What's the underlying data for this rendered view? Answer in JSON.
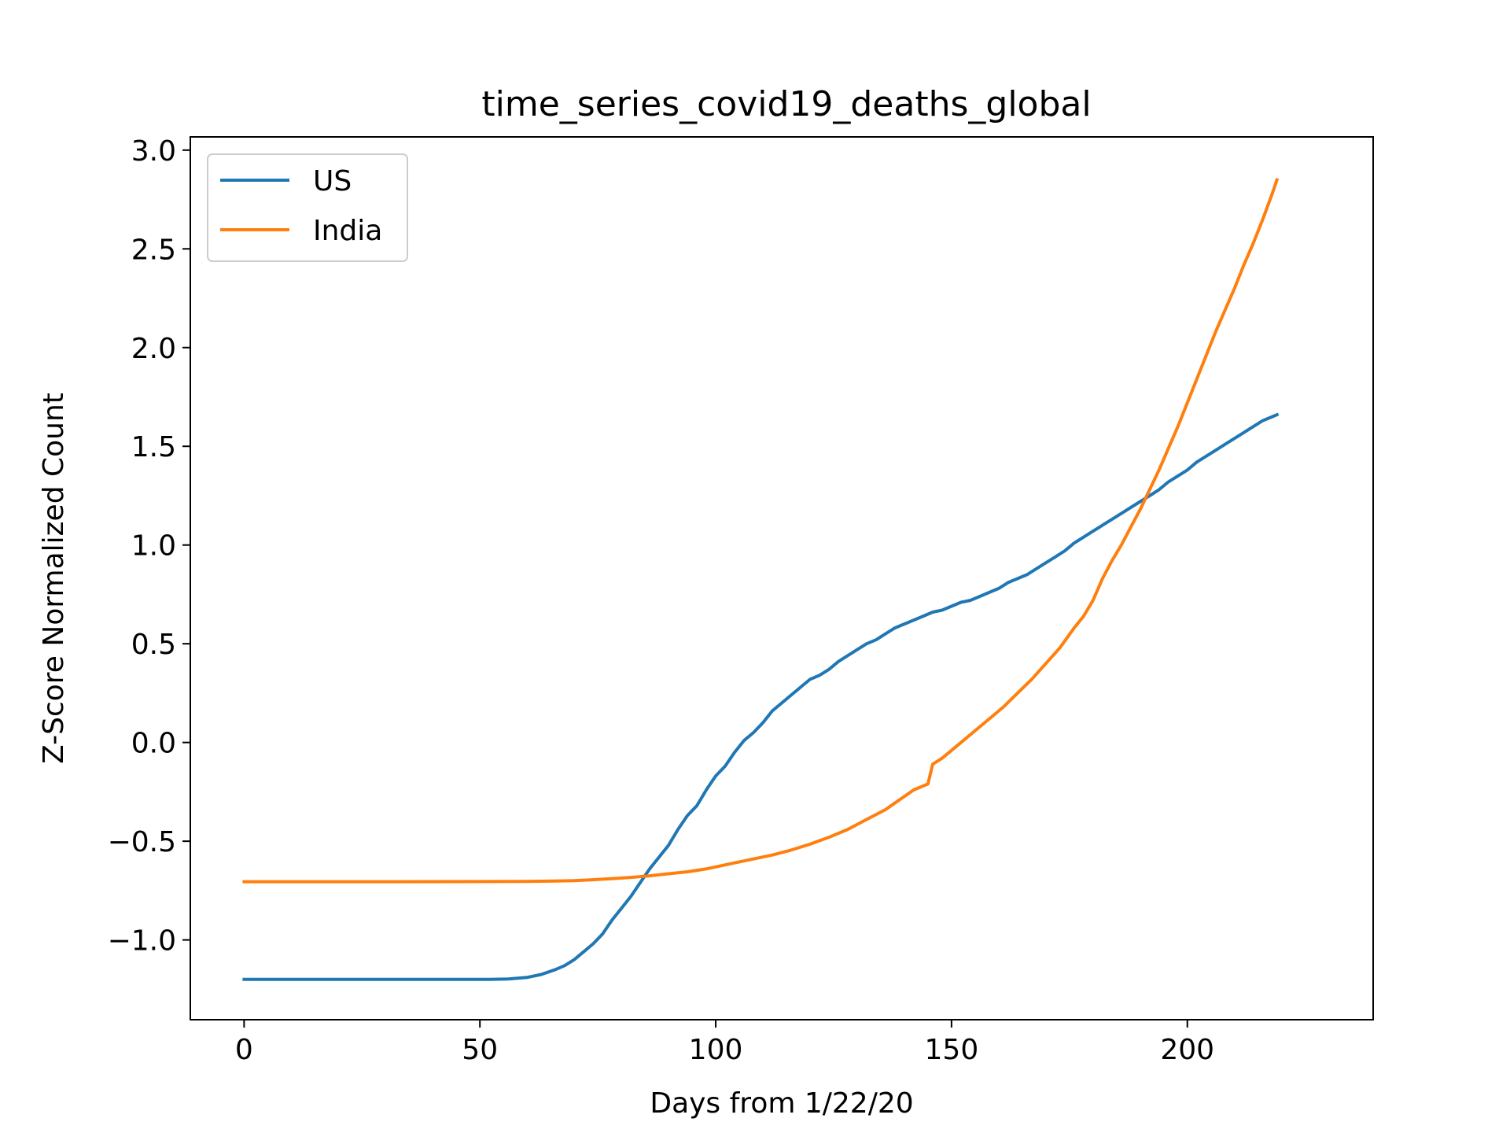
{
  "chart_data": {
    "type": "line",
    "title": "time_series_covid19_deaths_global",
    "xlabel": "Days from 1/22/20",
    "ylabel": "Z-Score Normalized Count",
    "xlim": [
      -11.4,
      239.4
    ],
    "ylim": [
      -1.404,
      3.067
    ],
    "xticks": [
      0,
      50,
      100,
      150,
      200
    ],
    "xtick_labels": [
      "0",
      "50",
      "100",
      "150",
      "200"
    ],
    "yticks": [
      -1.0,
      -0.5,
      0.0,
      0.5,
      1.0,
      1.5,
      2.0,
      2.5,
      3.0
    ],
    "ytick_labels": [
      "−1.0",
      "−0.5",
      "0.0",
      "0.5",
      "1.0",
      "1.5",
      "2.0",
      "2.5",
      "3.0"
    ],
    "grid": false,
    "legend_position": "top-left",
    "series": [
      {
        "name": "US",
        "color": "#1f77b4",
        "points": [
          [
            0,
            -1.2
          ],
          [
            20,
            -1.2
          ],
          [
            40,
            -1.2
          ],
          [
            52,
            -1.2
          ],
          [
            56,
            -1.198
          ],
          [
            60,
            -1.19
          ],
          [
            63,
            -1.175
          ],
          [
            66,
            -1.15
          ],
          [
            68,
            -1.13
          ],
          [
            70,
            -1.1
          ],
          [
            72,
            -1.06
          ],
          [
            74,
            -1.02
          ],
          [
            76,
            -0.97
          ],
          [
            78,
            -0.9
          ],
          [
            80,
            -0.84
          ],
          [
            82,
            -0.78
          ],
          [
            84,
            -0.71
          ],
          [
            86,
            -0.64
          ],
          [
            88,
            -0.58
          ],
          [
            90,
            -0.52
          ],
          [
            92,
            -0.44
          ],
          [
            94,
            -0.37
          ],
          [
            96,
            -0.32
          ],
          [
            98,
            -0.24
          ],
          [
            100,
            -0.17
          ],
          [
            102,
            -0.12
          ],
          [
            104,
            -0.05
          ],
          [
            106,
            0.01
          ],
          [
            108,
            0.05
          ],
          [
            110,
            0.1
          ],
          [
            112,
            0.16
          ],
          [
            114,
            0.2
          ],
          [
            116,
            0.24
          ],
          [
            118,
            0.28
          ],
          [
            120,
            0.32
          ],
          [
            122,
            0.34
          ],
          [
            124,
            0.37
          ],
          [
            126,
            0.41
          ],
          [
            128,
            0.44
          ],
          [
            130,
            0.47
          ],
          [
            132,
            0.5
          ],
          [
            134,
            0.52
          ],
          [
            136,
            0.55
          ],
          [
            138,
            0.58
          ],
          [
            140,
            0.6
          ],
          [
            142,
            0.62
          ],
          [
            144,
            0.64
          ],
          [
            146,
            0.66
          ],
          [
            148,
            0.67
          ],
          [
            150,
            0.69
          ],
          [
            152,
            0.71
          ],
          [
            154,
            0.72
          ],
          [
            156,
            0.74
          ],
          [
            158,
            0.76
          ],
          [
            160,
            0.78
          ],
          [
            162,
            0.81
          ],
          [
            164,
            0.83
          ],
          [
            166,
            0.85
          ],
          [
            168,
            0.88
          ],
          [
            170,
            0.91
          ],
          [
            172,
            0.94
          ],
          [
            174,
            0.97
          ],
          [
            176,
            1.01
          ],
          [
            178,
            1.04
          ],
          [
            180,
            1.07
          ],
          [
            182,
            1.1
          ],
          [
            184,
            1.13
          ],
          [
            186,
            1.16
          ],
          [
            188,
            1.19
          ],
          [
            190,
            1.22
          ],
          [
            192,
            1.25
          ],
          [
            194,
            1.28
          ],
          [
            196,
            1.32
          ],
          [
            198,
            1.35
          ],
          [
            200,
            1.38
          ],
          [
            202,
            1.42
          ],
          [
            204,
            1.45
          ],
          [
            206,
            1.48
          ],
          [
            208,
            1.51
          ],
          [
            210,
            1.54
          ],
          [
            212,
            1.57
          ],
          [
            214,
            1.6
          ],
          [
            216,
            1.63
          ],
          [
            218,
            1.65
          ],
          [
            219,
            1.66
          ]
        ]
      },
      {
        "name": "India",
        "color": "#ff7f0e",
        "points": [
          [
            0,
            -0.705
          ],
          [
            30,
            -0.705
          ],
          [
            60,
            -0.704
          ],
          [
            66,
            -0.702
          ],
          [
            70,
            -0.7
          ],
          [
            74,
            -0.695
          ],
          [
            78,
            -0.69
          ],
          [
            82,
            -0.683
          ],
          [
            86,
            -0.675
          ],
          [
            90,
            -0.665
          ],
          [
            94,
            -0.655
          ],
          [
            98,
            -0.64
          ],
          [
            100,
            -0.63
          ],
          [
            104,
            -0.61
          ],
          [
            108,
            -0.59
          ],
          [
            112,
            -0.57
          ],
          [
            116,
            -0.545
          ],
          [
            120,
            -0.515
          ],
          [
            124,
            -0.48
          ],
          [
            128,
            -0.44
          ],
          [
            132,
            -0.39
          ],
          [
            136,
            -0.34
          ],
          [
            139,
            -0.29
          ],
          [
            142,
            -0.24
          ],
          [
            145,
            -0.21
          ],
          [
            146,
            -0.11
          ],
          [
            148,
            -0.08
          ],
          [
            150,
            -0.04
          ],
          [
            152,
            0.0
          ],
          [
            155,
            0.06
          ],
          [
            158,
            0.12
          ],
          [
            161,
            0.18
          ],
          [
            164,
            0.25
          ],
          [
            167,
            0.32
          ],
          [
            170,
            0.4
          ],
          [
            173,
            0.48
          ],
          [
            176,
            0.58
          ],
          [
            178,
            0.64
          ],
          [
            180,
            0.72
          ],
          [
            182,
            0.83
          ],
          [
            184,
            0.92
          ],
          [
            186,
            1.0
          ],
          [
            188,
            1.09
          ],
          [
            190,
            1.18
          ],
          [
            192,
            1.28
          ],
          [
            194,
            1.38
          ],
          [
            196,
            1.49
          ],
          [
            198,
            1.6
          ],
          [
            200,
            1.72
          ],
          [
            202,
            1.84
          ],
          [
            204,
            1.96
          ],
          [
            206,
            2.08
          ],
          [
            208,
            2.19
          ],
          [
            210,
            2.3
          ],
          [
            212,
            2.42
          ],
          [
            214,
            2.53
          ],
          [
            216,
            2.65
          ],
          [
            218,
            2.78
          ],
          [
            219,
            2.85
          ]
        ]
      }
    ]
  }
}
